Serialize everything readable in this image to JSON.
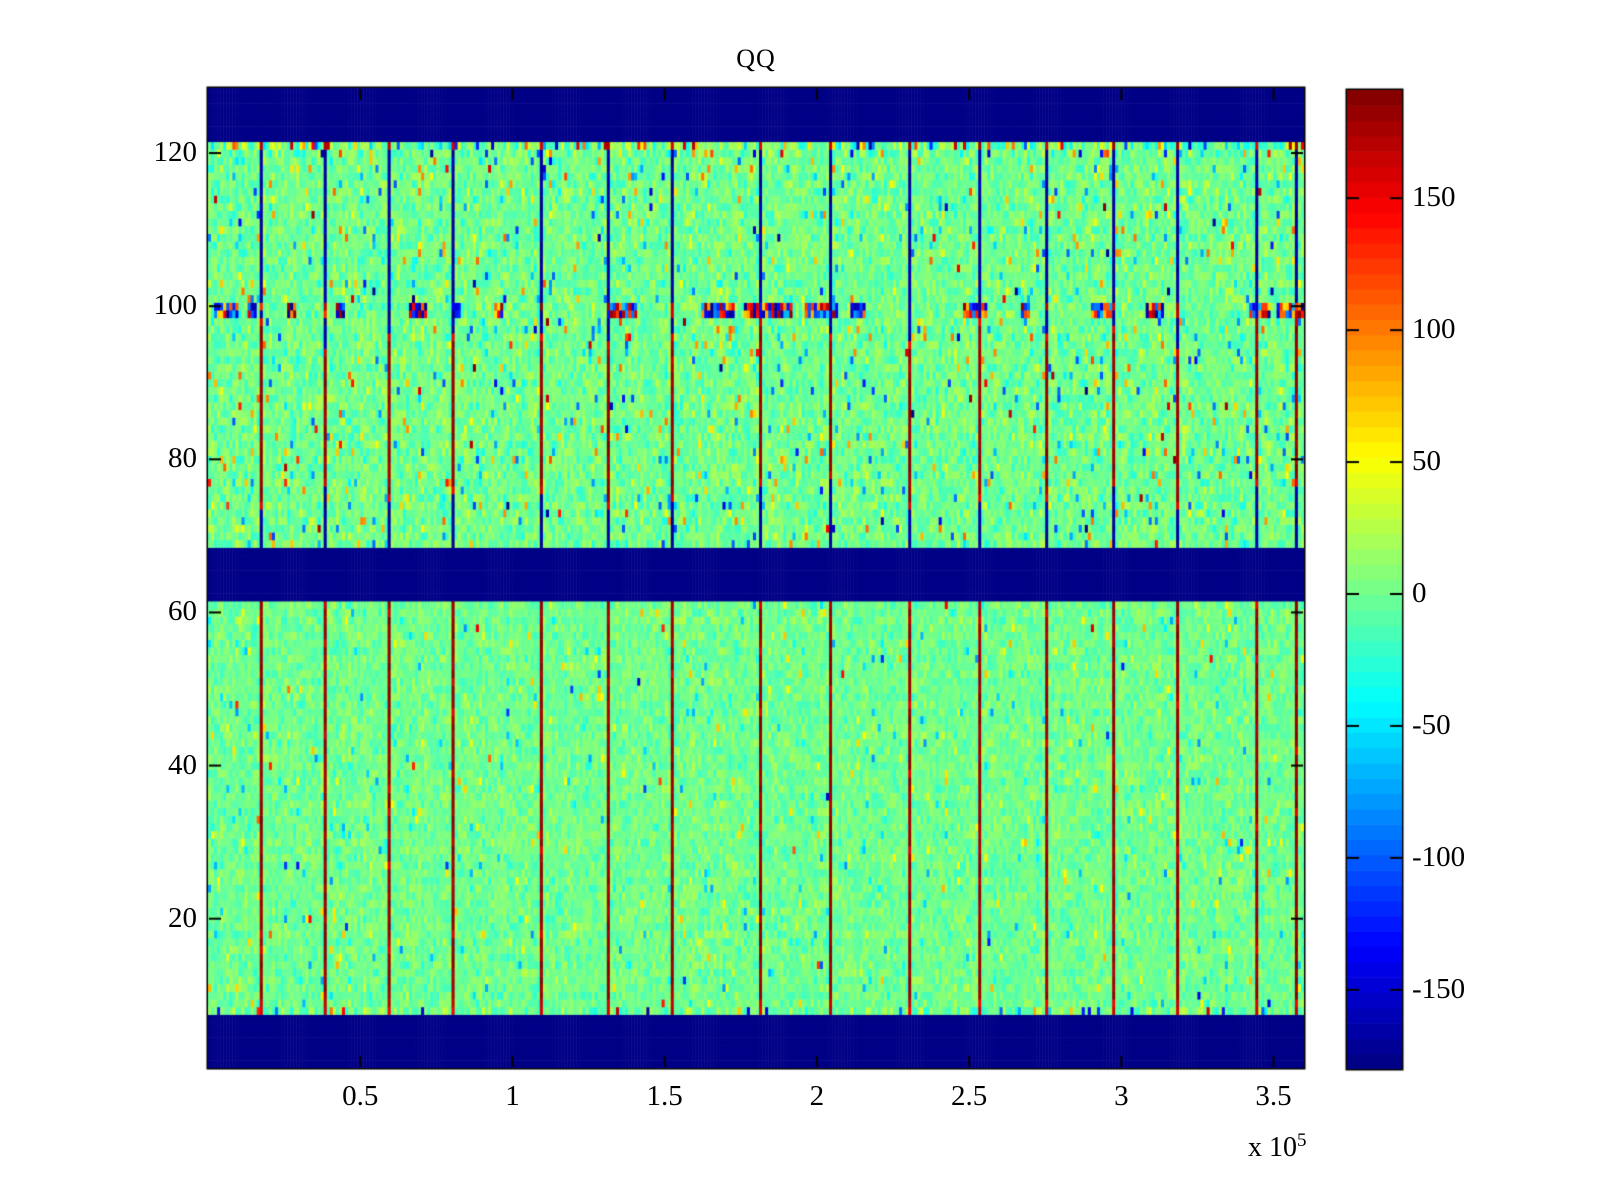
{
  "title": "QQ",
  "chart_data": {
    "type": "heatmap",
    "title": "QQ",
    "colormap": "jet",
    "color_levels": 64,
    "value_range": [
      -180,
      191
    ],
    "x_axis": {
      "range_1e5": [
        0,
        3.6
      ],
      "ticks_1e5": [
        0.5,
        1,
        1.5,
        2,
        2.5,
        3,
        3.5
      ],
      "scale_prefix": "x 10",
      "scale_exponent": "5"
    },
    "y_axis": {
      "range": [
        0.5,
        128.5
      ],
      "ticks": [
        20,
        40,
        60,
        80,
        100,
        120
      ]
    },
    "colorbar": {
      "ticks": [
        150,
        100,
        50,
        0,
        -50,
        -100,
        -150
      ],
      "position": "right"
    },
    "grid": {
      "rows": 128,
      "cols": 360
    },
    "solid_low_bands_rows": [
      [
        1,
        7
      ],
      [
        62,
        68
      ],
      [
        122,
        128
      ]
    ],
    "burst_noise_rows": [
      99,
      100
    ],
    "edge_noise_rows": [
      8,
      120,
      121
    ],
    "stripe_columns_x_1e5": [
      0.17,
      0.38,
      0.59,
      0.8,
      1.09,
      1.31,
      1.52,
      1.81,
      2.04,
      2.3,
      2.53,
      2.75,
      2.97,
      3.18,
      3.44,
      3.57
    ],
    "stripe_pattern": {
      "lower_panel_rows_8_61": "dark red ~ +185 with bright red ends",
      "upper_panel_red_rows_76_99": "dark red ~ +183",
      "upper_panel_blue_rows_100_121": "dark blue ~ -168",
      "upper_panel_blue_rows_69_75": "dark blue ~ -168",
      "top_edge_row_121": "bright red dot ~ +160"
    },
    "background_noise": {
      "mean": 0,
      "std_upper_panel": 13.5,
      "std_lower_panel": 11
    },
    "band_color": "#00008C",
    "seed": 1337
  }
}
